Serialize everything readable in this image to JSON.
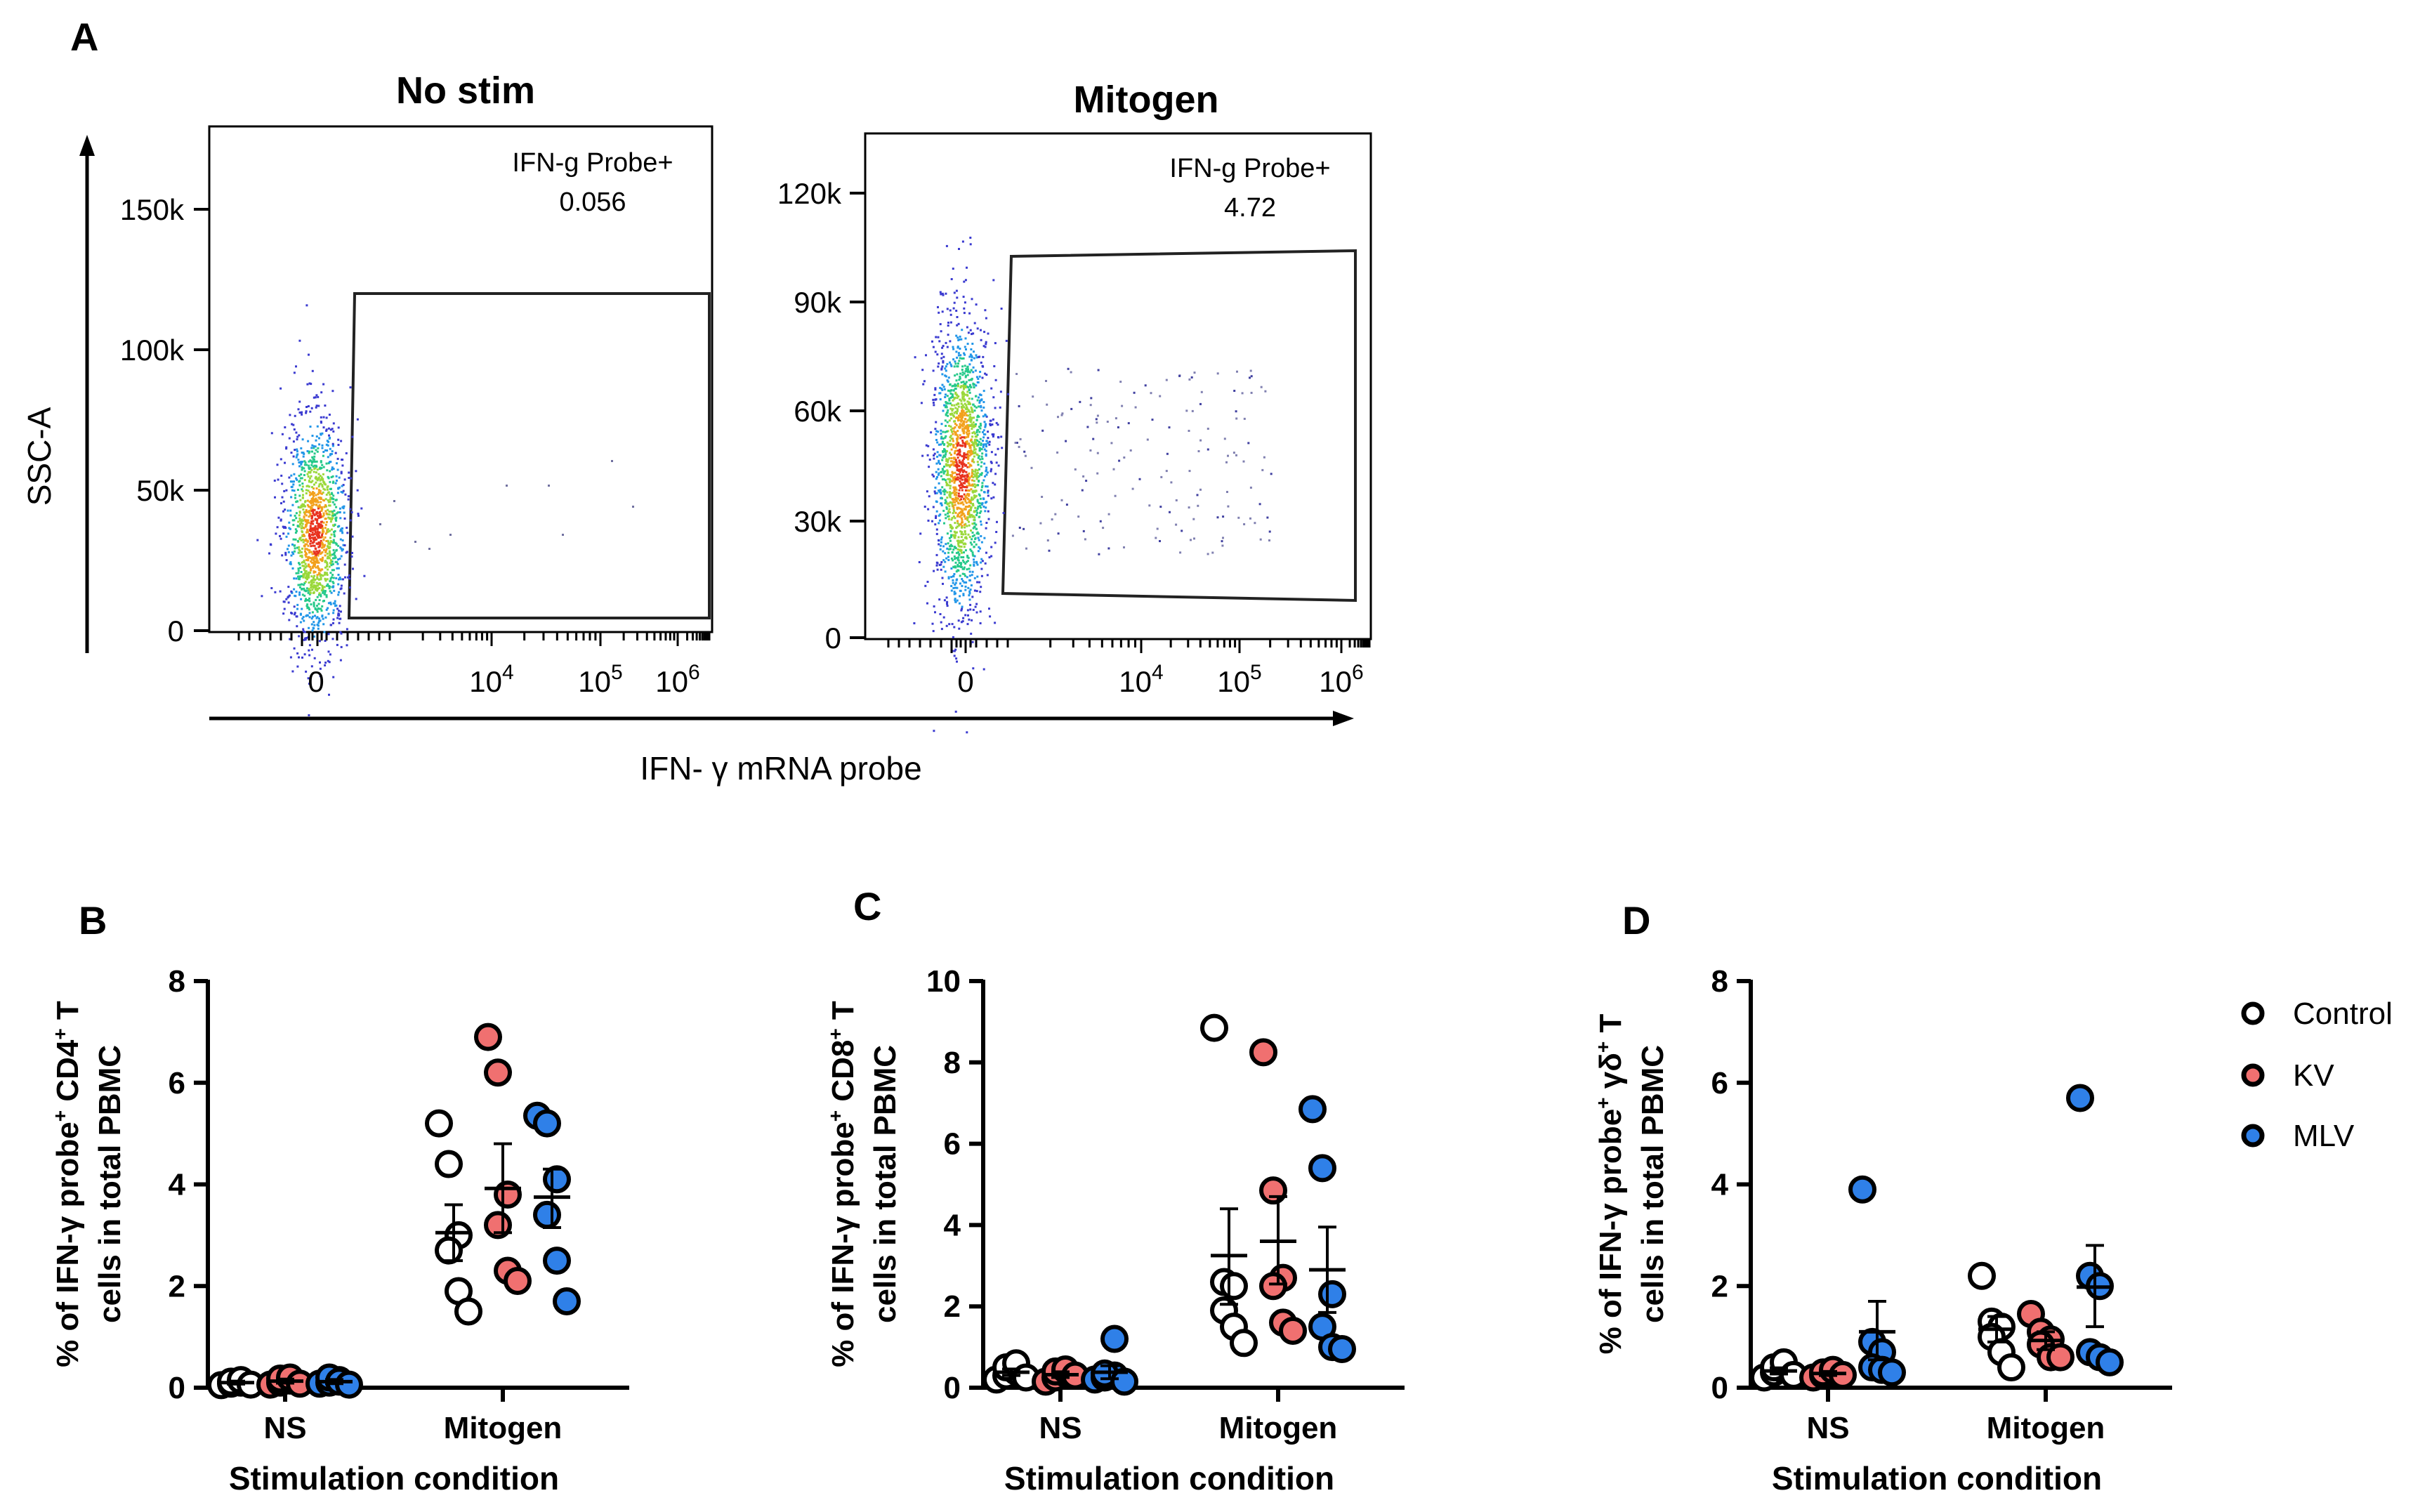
{
  "panel_a": {
    "letter": "A",
    "y_axis_label": "SSC-A",
    "x_axis_label": "IFN- γ mRNA probe",
    "plots": [
      {
        "title": "No stim",
        "gate_name": "IFN-g Probe+",
        "gate_value": "0.056",
        "y_ticks": [
          "150k",
          "100k",
          "50k",
          "0"
        ],
        "x_ticks": [
          "0",
          "10",
          "10",
          "10"
        ],
        "x_tick_exponents": [
          "",
          "4",
          "5",
          "6"
        ]
      },
      {
        "title": "Mitogen",
        "gate_name": "IFN-g Probe+",
        "gate_value": "4.72",
        "y_ticks": [
          "120k",
          "90k",
          "60k",
          "30k",
          "0"
        ],
        "x_ticks": [
          "0",
          "10",
          "10",
          "10"
        ],
        "x_tick_exponents": [
          "",
          "4",
          "5",
          "6"
        ]
      }
    ]
  },
  "legend": [
    {
      "name": "Control",
      "color": "#ffffff"
    },
    {
      "name": "KV",
      "color": "#f07070"
    },
    {
      "name": "MLV",
      "color": "#2f80e8"
    }
  ],
  "chart_data": [
    {
      "type": "scatter",
      "panel": "B",
      "ylabel_line1": "% of IFN-γ probe",
      "ylabel_sup": "+",
      "ylabel_line1_rest": " CD4",
      "ylabel_sup2": "+",
      "ylabel_line1_end": " T",
      "ylabel_line2": "cells in total PBMC",
      "xlabel": "Stimulation condition",
      "categories": [
        "NS",
        "Mitogen"
      ],
      "ylim": [
        0,
        8
      ],
      "yticks": [
        "0",
        "2",
        "4",
        "6",
        "8"
      ],
      "series": [
        {
          "name": "Control",
          "NS": [
            0.05,
            0.08,
            0.1,
            0.12,
            0.15,
            0.06
          ],
          "Mitogen": [
            5.2,
            4.4,
            3.0,
            2.7,
            1.9,
            1.5
          ],
          "mean": [
            0.1,
            3.05
          ],
          "sem_low": [
            0.07,
            2.5
          ],
          "sem_high": [
            0.13,
            3.6
          ]
        },
        {
          "name": "KV",
          "NS": [
            0.06,
            0.1,
            0.14,
            0.18,
            0.2,
            0.08
          ],
          "Mitogen": [
            6.9,
            6.2,
            3.8,
            3.2,
            2.3,
            2.1
          ],
          "mean": [
            0.13,
            3.92
          ],
          "sem_low": [
            0.09,
            3.05
          ],
          "sem_high": [
            0.17,
            4.8
          ]
        },
        {
          "name": "MLV",
          "NS": [
            0.08,
            0.1,
            0.15,
            0.2,
            0.12,
            0.06
          ],
          "Mitogen": [
            5.35,
            5.2,
            4.1,
            3.4,
            2.5,
            1.7
          ],
          "mean": [
            0.12,
            3.75
          ],
          "sem_low": [
            0.08,
            3.15
          ],
          "sem_high": [
            0.16,
            4.3
          ]
        }
      ]
    },
    {
      "type": "scatter",
      "panel": "C",
      "ylabel_line1": "% of IFN-γ probe",
      "ylabel_sup": "+",
      "ylabel_line1_rest": " CD8",
      "ylabel_sup2": "+",
      "ylabel_line1_end": " T",
      "ylabel_line2": "cells in total PBMC",
      "xlabel": "Stimulation condition",
      "categories": [
        "NS",
        "Mitogen"
      ],
      "ylim": [
        0,
        10
      ],
      "yticks": [
        "0",
        "2",
        "4",
        "6",
        "8",
        "10"
      ],
      "series": [
        {
          "name": "Control",
          "NS": [
            0.2,
            0.3,
            0.4,
            0.5,
            0.6,
            0.25
          ],
          "Mitogen": [
            8.85,
            2.6,
            2.5,
            1.9,
            1.5,
            1.1
          ],
          "mean": [
            0.38,
            3.25
          ],
          "sem_low": [
            0.3,
            2.05
          ],
          "sem_high": [
            0.46,
            4.4
          ]
        },
        {
          "name": "KV",
          "NS": [
            0.15,
            0.25,
            0.35,
            0.4,
            0.45,
            0.3
          ],
          "Mitogen": [
            8.25,
            4.85,
            2.7,
            2.5,
            1.6,
            1.4
          ],
          "mean": [
            0.32,
            3.6
          ],
          "sem_low": [
            0.25,
            2.55
          ],
          "sem_high": [
            0.39,
            4.7
          ]
        },
        {
          "name": "MLV",
          "NS": [
            0.2,
            0.25,
            0.3,
            0.35,
            1.2,
            0.15
          ],
          "Mitogen": [
            6.85,
            5.4,
            2.3,
            1.5,
            1.0,
            0.95
          ],
          "mean": [
            0.38,
            2.9
          ],
          "sem_low": [
            0.22,
            1.85
          ],
          "sem_high": [
            0.54,
            3.95
          ]
        }
      ]
    },
    {
      "type": "scatter",
      "panel": "D",
      "ylabel_line1": "% of IFN-γ probe",
      "ylabel_sup": "+",
      "ylabel_line1_rest": " γδ",
      "ylabel_sup2": "+",
      "ylabel_line1_end": " T",
      "ylabel_line2": "cells in total PBMC",
      "xlabel": "Stimulation condition",
      "categories": [
        "NS",
        "Mitogen"
      ],
      "ylim": [
        0,
        8
      ],
      "yticks": [
        "0",
        "2",
        "4",
        "6",
        "8"
      ],
      "series": [
        {
          "name": "Control",
          "NS": [
            0.2,
            0.3,
            0.35,
            0.4,
            0.5,
            0.25
          ],
          "Mitogen": [
            2.2,
            1.3,
            1.2,
            1.0,
            0.7,
            0.4
          ],
          "mean": [
            0.33,
            1.15
          ],
          "sem_low": [
            0.27,
            0.9
          ],
          "sem_high": [
            0.39,
            1.4
          ]
        },
        {
          "name": "KV",
          "NS": [
            0.2,
            0.25,
            0.3,
            0.3,
            0.35,
            0.25
          ],
          "Mitogen": [
            1.45,
            1.1,
            0.95,
            0.85,
            0.6,
            0.6
          ],
          "mean": [
            0.28,
            0.93
          ],
          "sem_low": [
            0.24,
            0.75
          ],
          "sem_high": [
            0.32,
            1.1
          ]
        },
        {
          "name": "MLV",
          "NS": [
            3.9,
            0.9,
            0.7,
            0.4,
            0.35,
            0.3
          ],
          "Mitogen": [
            5.7,
            2.2,
            2.0,
            0.7,
            0.6,
            0.5
          ],
          "mean": [
            1.1,
            1.98
          ],
          "sem_low": [
            0.55,
            1.2
          ],
          "sem_high": [
            1.7,
            2.8
          ]
        }
      ]
    }
  ]
}
